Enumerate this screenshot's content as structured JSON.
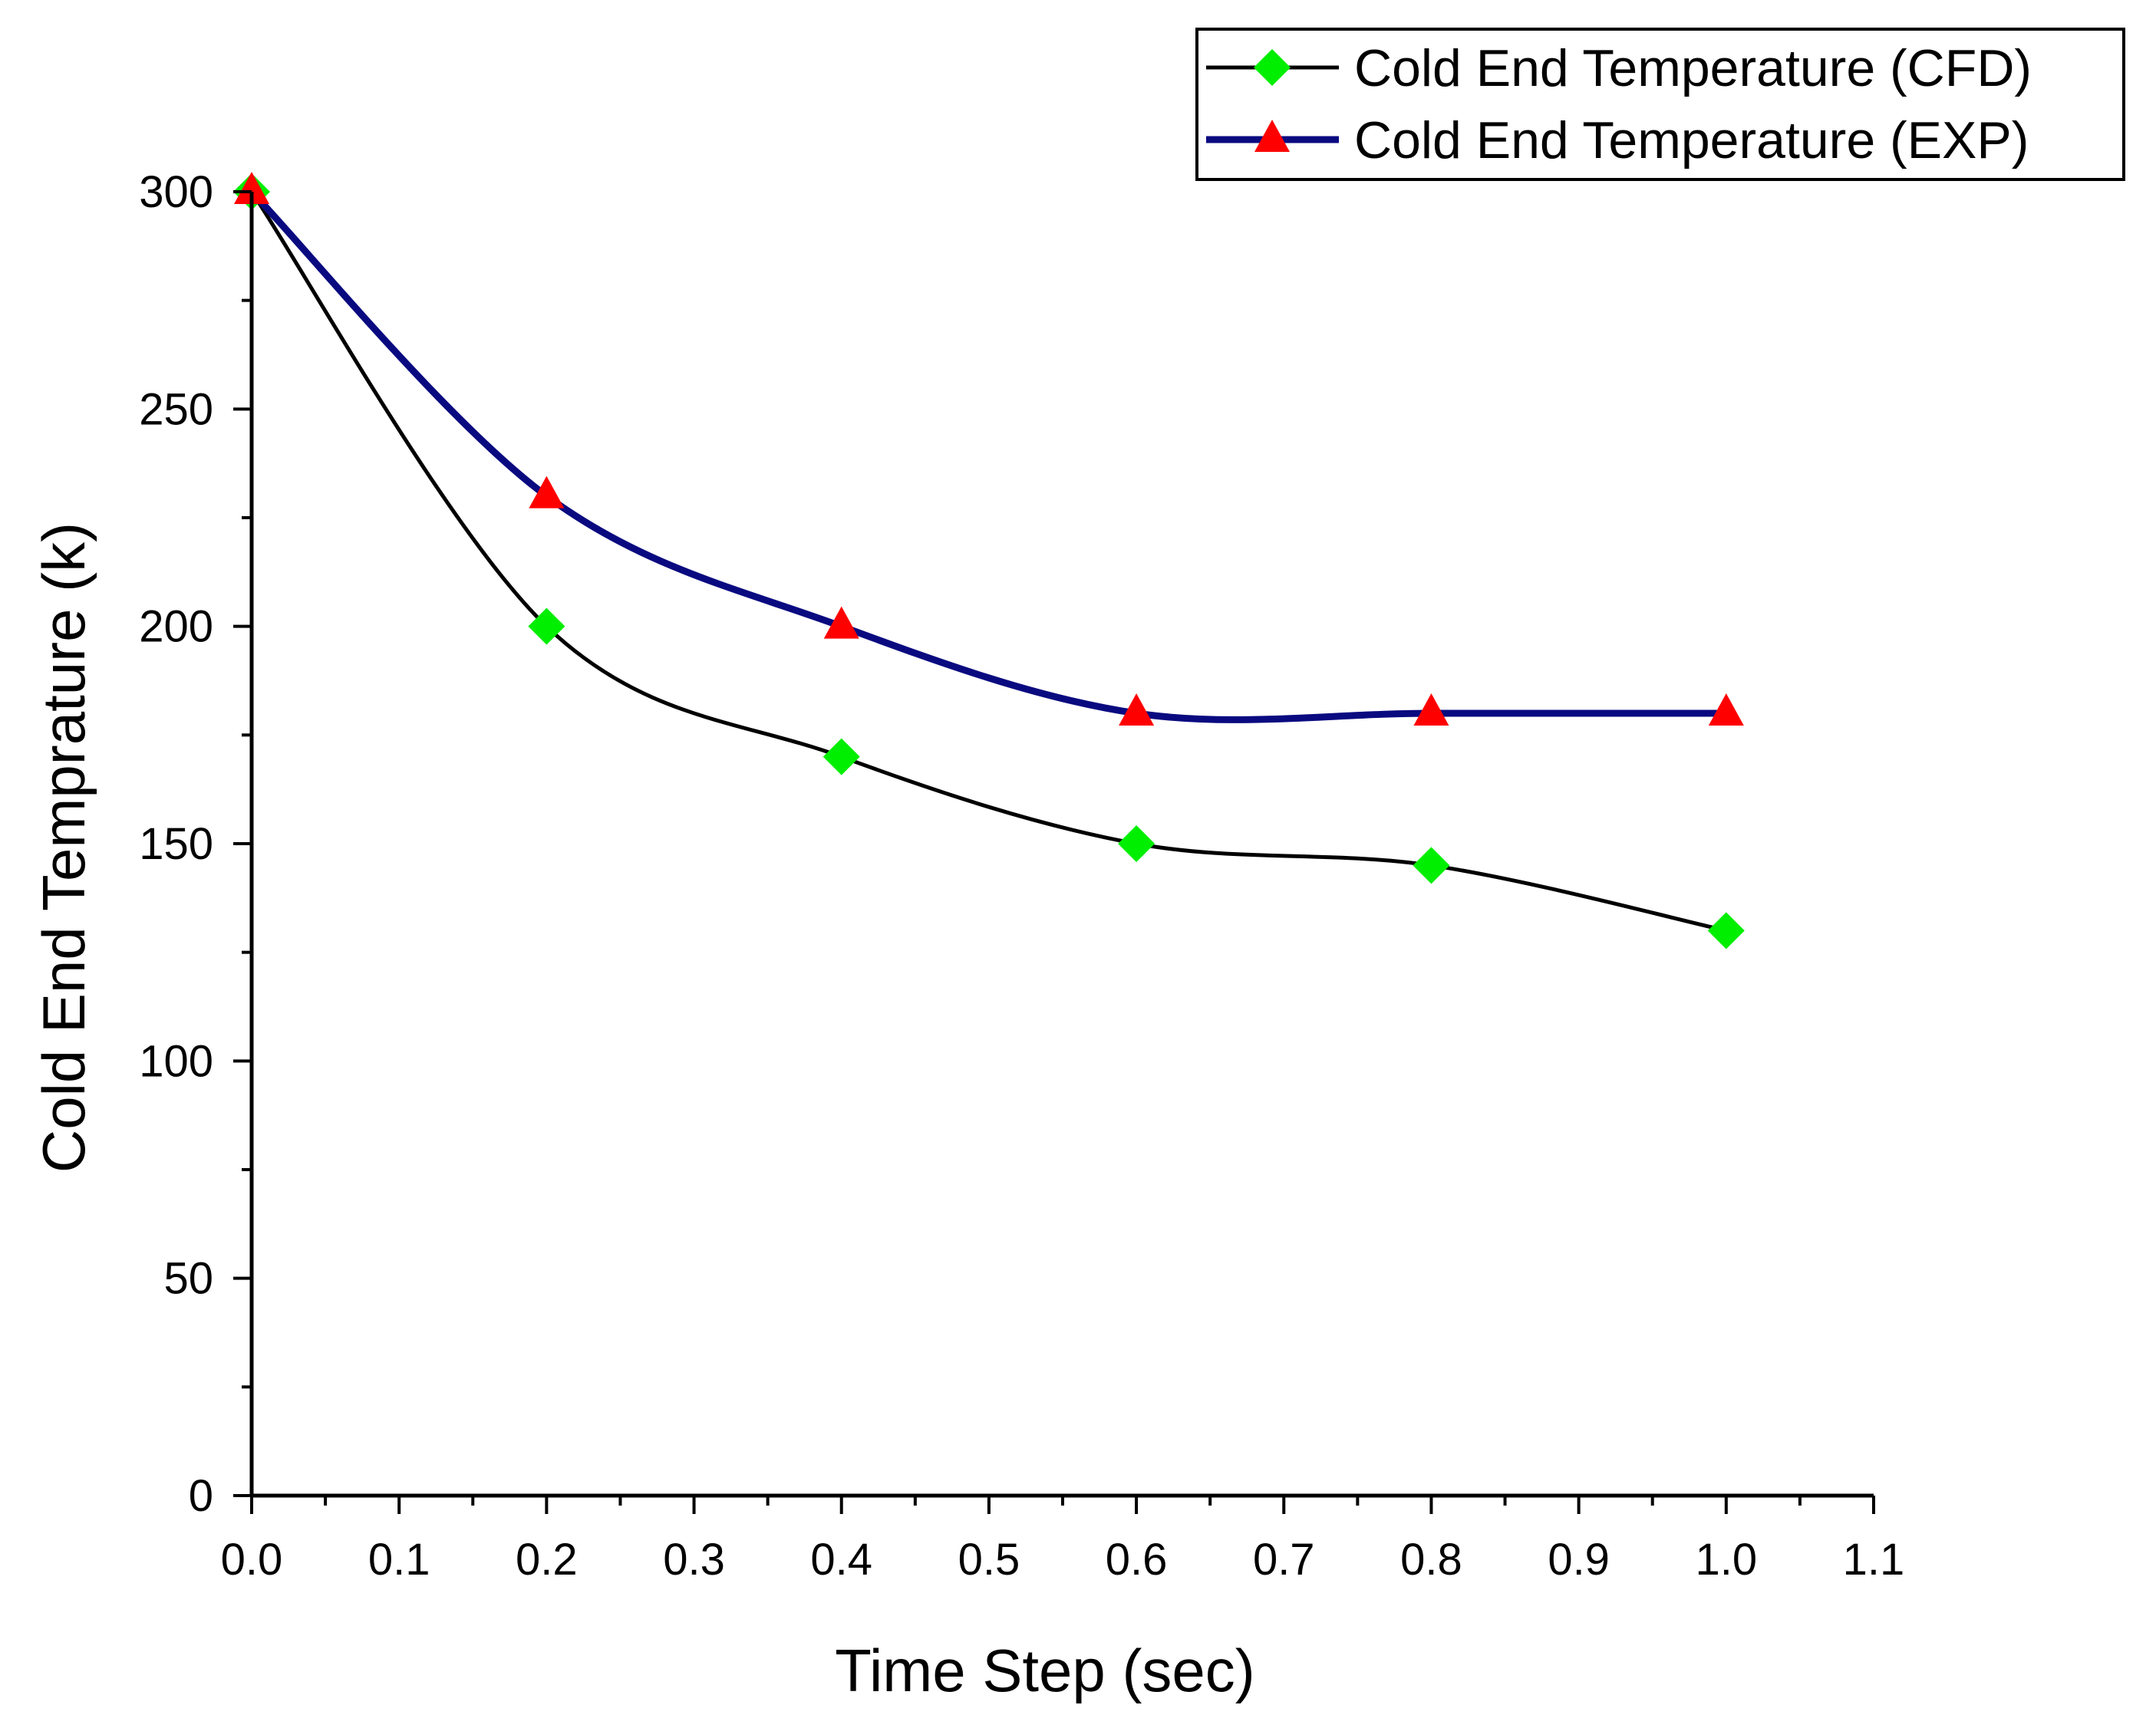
{
  "chart_data": {
    "type": "line",
    "title": "",
    "xlabel": "Time Step (sec)",
    "ylabel": "Cold End Temprature (k)",
    "xlim": [
      0.0,
      1.1
    ],
    "ylim": [
      0,
      300
    ],
    "x_major_step": 0.1,
    "y_major_step": 50,
    "x_tick_labels": [
      "0.0",
      "0.1",
      "0.2",
      "0.3",
      "0.4",
      "0.5",
      "0.6",
      "0.7",
      "0.8",
      "0.9",
      "1.0",
      "1.1"
    ],
    "y_tick_labels": [
      "0",
      "50",
      "100",
      "150",
      "200",
      "250",
      "300"
    ],
    "grid": false,
    "legend_position": "top-right",
    "series": [
      {
        "name": "Cold End Temperature (CFD)",
        "line_color": "#000000",
        "marker": "diamond",
        "marker_color": "#00ee00",
        "x": [
          0.0,
          0.2,
          0.4,
          0.6,
          0.8,
          1.0
        ],
        "y": [
          300,
          200,
          170,
          150,
          145,
          130
        ]
      },
      {
        "name": "Cold End Temperature (EXP)",
        "line_color": "#0a0a80",
        "marker": "triangle",
        "marker_color": "#ff0000",
        "x": [
          0.0,
          0.2,
          0.4,
          0.6,
          0.8,
          1.0
        ],
        "y": [
          300,
          230,
          200,
          180,
          180,
          180
        ]
      }
    ]
  }
}
